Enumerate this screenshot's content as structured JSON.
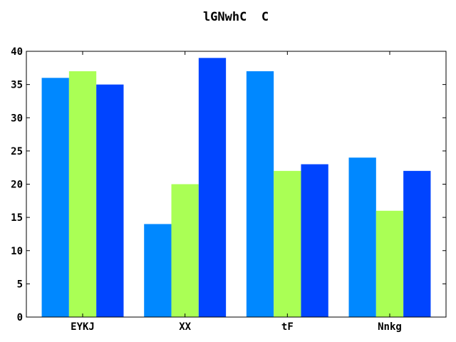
{
  "chart_data": {
    "type": "bar",
    "title": "lGNwhC  C",
    "xlabel": "",
    "ylabel": "",
    "categories": [
      "EYKJ",
      "XX",
      "tF",
      "Nnkg"
    ],
    "series": [
      {
        "values": [
          36,
          14,
          37,
          24
        ],
        "color": "#0088ff"
      },
      {
        "values": [
          37,
          20,
          22,
          16
        ],
        "color": "#aaff55"
      },
      {
        "values": [
          35,
          39,
          23,
          22
        ],
        "color": "#0044ff"
      }
    ],
    "ylim": [
      0,
      40
    ],
    "yticks": [
      "0",
      "5",
      "10",
      "15",
      "20",
      "25",
      "30",
      "35",
      "40"
    ],
    "grid": false,
    "legend": "none"
  }
}
